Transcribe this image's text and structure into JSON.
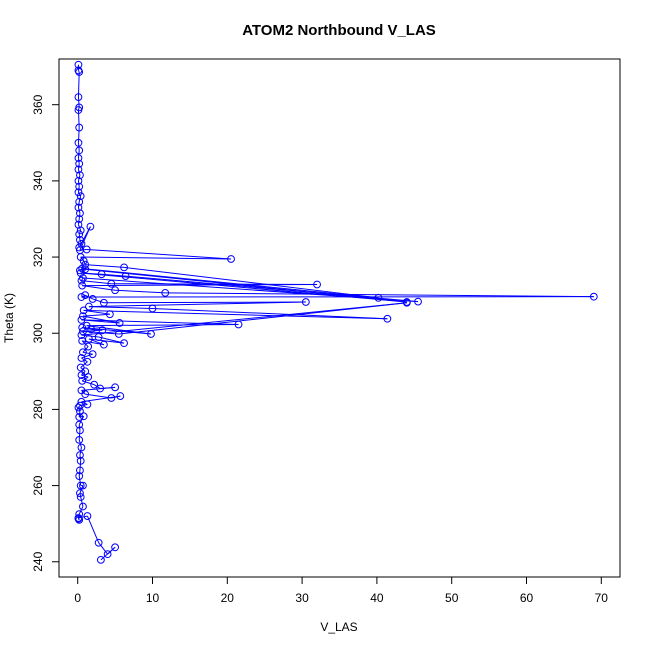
{
  "chart_data": {
    "type": "line",
    "title": "ATOM2 Northbound V_LAS",
    "xlabel": "V_LAS",
    "ylabel": "Theta (K)",
    "xlim": [
      -2.5,
      72.5
    ],
    "ylim": [
      236,
      372
    ],
    "xticks": [
      0,
      10,
      20,
      30,
      40,
      50,
      60,
      70
    ],
    "yticks": [
      240,
      260,
      280,
      300,
      320,
      340,
      360
    ],
    "grid": false,
    "legend": "none",
    "marker": "open-circle",
    "color": "#0000ff",
    "series": [
      {
        "values": [
          [
            0.1,
            370.5
          ],
          [
            0.1,
            369.0
          ],
          [
            0.2,
            368.6
          ],
          [
            0.1,
            362.0
          ],
          [
            0.2,
            359.3
          ],
          [
            0.1,
            358.6
          ],
          [
            0.2,
            354.0
          ],
          [
            0.1,
            350.0
          ],
          [
            0.2,
            348.0
          ],
          [
            0.1,
            346.0
          ],
          [
            0.2,
            344.5
          ],
          [
            0.1,
            343.0
          ],
          [
            0.3,
            341.5
          ],
          [
            0.1,
            340.0
          ],
          [
            0.2,
            338.5
          ],
          [
            0.1,
            337.0
          ],
          [
            0.4,
            336.0
          ],
          [
            0.2,
            334.5
          ],
          [
            0.1,
            333.0
          ],
          [
            0.3,
            331.5
          ],
          [
            0.2,
            330.0
          ],
          [
            0.1,
            328.5
          ],
          [
            0.4,
            327.0
          ],
          [
            0.2,
            326.0
          ],
          [
            0.3,
            324.5
          ],
          [
            0.5,
            323.5
          ],
          [
            0.2,
            322.5
          ],
          [
            1.7,
            328.0
          ],
          [
            0.3,
            321.8
          ],
          [
            1.2,
            322.0
          ],
          [
            20.5,
            319.5
          ],
          [
            0.4,
            320.0
          ],
          [
            0.8,
            319.0
          ],
          [
            1.0,
            318.0
          ],
          [
            6.2,
            317.3
          ],
          [
            40.2,
            309.3
          ],
          [
            0.6,
            317.0
          ],
          [
            0.3,
            316.5
          ],
          [
            1.0,
            316.8
          ],
          [
            44.0,
            308.2
          ],
          [
            0.4,
            315.8
          ],
          [
            3.2,
            315.5
          ],
          [
            6.4,
            315.0
          ],
          [
            45.5,
            308.3
          ],
          [
            0.7,
            314.5
          ],
          [
            0.5,
            313.8
          ],
          [
            4.5,
            313.0
          ],
          [
            32.0,
            312.8
          ],
          [
            0.6,
            312.5
          ],
          [
            5.0,
            311.3
          ],
          [
            11.7,
            310.6
          ],
          [
            69.0,
            309.6
          ],
          [
            0.5,
            309.5
          ],
          [
            1.0,
            310.0
          ],
          [
            2.0,
            309.0
          ],
          [
            3.5,
            308.0
          ],
          [
            30.5,
            308.2
          ],
          [
            1.5,
            307.0
          ],
          [
            10.0,
            306.5
          ],
          [
            41.4,
            303.8
          ],
          [
            0.8,
            306.0
          ],
          [
            4.3,
            305.0
          ],
          [
            0.7,
            304.5
          ],
          [
            5.6,
            302.7
          ],
          [
            0.5,
            303.5
          ],
          [
            21.5,
            302.3
          ],
          [
            1.2,
            302.0
          ],
          [
            9.8,
            299.8
          ],
          [
            0.6,
            301.5
          ],
          [
            1.8,
            301.0
          ],
          [
            3.3,
            300.8
          ],
          [
            0.7,
            300.5
          ],
          [
            5.5,
            299.8
          ],
          [
            44.0,
            308.0
          ],
          [
            0.5,
            299.5
          ],
          [
            2.8,
            299.0
          ],
          [
            6.2,
            297.4
          ],
          [
            1.5,
            298.5
          ],
          [
            3.5,
            297.0
          ],
          [
            0.6,
            298.0
          ],
          [
            1.4,
            296.5
          ],
          [
            0.7,
            295.0
          ],
          [
            2.0,
            294.5
          ],
          [
            0.5,
            293.5
          ],
          [
            1.3,
            292.5
          ],
          [
            0.4,
            291.0
          ],
          [
            1.0,
            290.0
          ],
          [
            0.5,
            289.0
          ],
          [
            1.4,
            288.5
          ],
          [
            0.6,
            287.5
          ],
          [
            2.2,
            286.5
          ],
          [
            3.0,
            285.5
          ],
          [
            5.0,
            285.8
          ],
          [
            0.5,
            285.0
          ],
          [
            1.0,
            284.0
          ],
          [
            4.5,
            283.0
          ],
          [
            5.7,
            283.5
          ],
          [
            0.5,
            282.0
          ],
          [
            1.3,
            281.3
          ],
          [
            0.3,
            281.0
          ],
          [
            0.1,
            280.5
          ],
          [
            0.3,
            279.5
          ],
          [
            0.2,
            278.0
          ],
          [
            0.8,
            278.2
          ],
          [
            0.2,
            276.0
          ],
          [
            0.3,
            274.5
          ],
          [
            0.2,
            272.0
          ],
          [
            0.5,
            270.0
          ],
          [
            0.3,
            268.0
          ],
          [
            0.4,
            266.5
          ],
          [
            0.3,
            264.0
          ],
          [
            0.2,
            262.5
          ],
          [
            0.4,
            260.0
          ],
          [
            0.7,
            260.0
          ],
          [
            0.3,
            258.0
          ],
          [
            0.4,
            257.0
          ],
          [
            0.7,
            254.5
          ],
          [
            0.2,
            252.5
          ],
          [
            0.1,
            251.3
          ],
          [
            0.2,
            251.0
          ],
          [
            0.1,
            251.5
          ],
          [
            1.3,
            252.0
          ],
          [
            2.8,
            245.0
          ],
          [
            4.0,
            242.0
          ],
          [
            5.0,
            243.8
          ],
          [
            3.1,
            240.5
          ]
        ]
      }
    ]
  }
}
